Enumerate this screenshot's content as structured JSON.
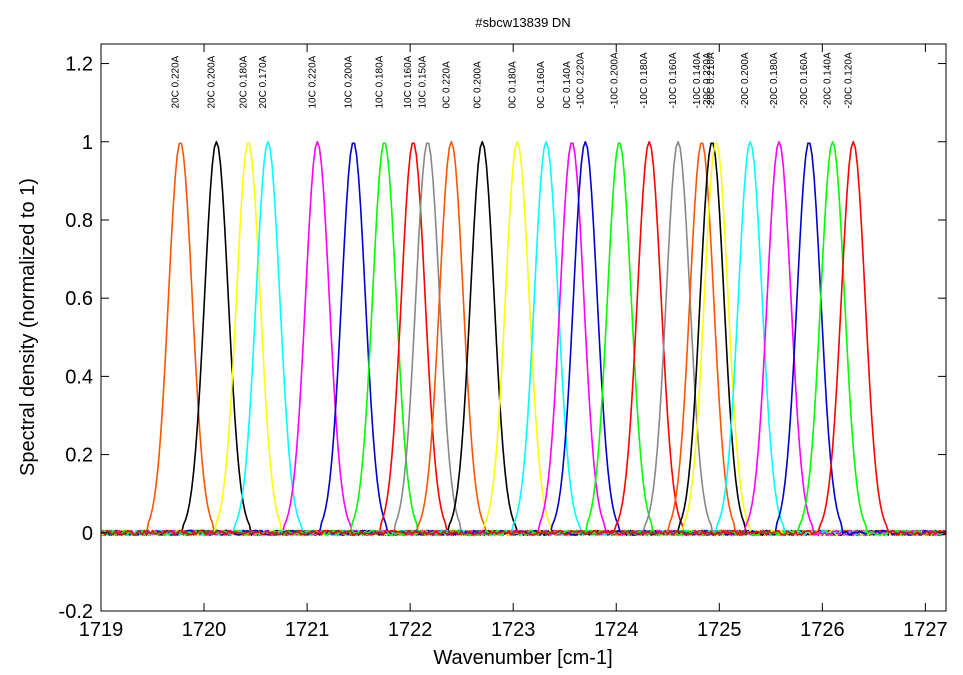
{
  "chart_data": {
    "type": "line",
    "title": "#sbcw13839 DN",
    "xlabel": "Wavenumber [cm-1]",
    "ylabel": "Spectral density (normalized to 1)",
    "xlim": [
      1719,
      1727.2
    ],
    "ylim": [
      -0.2,
      1.25
    ],
    "xticks": [
      1719,
      1720,
      1721,
      1722,
      1723,
      1724,
      1725,
      1726,
      1727
    ],
    "xtick_labels": [
      "1719",
      "1720",
      "1721",
      "1722",
      "1723",
      "1724",
      "1725",
      "1726",
      "1727"
    ],
    "yticks": [
      -0.2,
      0,
      0.2,
      0.4,
      0.6,
      0.8,
      1,
      1.2
    ],
    "ytick_labels": [
      "-0.2",
      "0",
      "0.2",
      "0.4",
      "0.6",
      "0.8",
      "1",
      "1.2"
    ],
    "grid": false,
    "peak_width": 0.27,
    "series": [
      {
        "name": "20C 0.220A",
        "peak": 1719.77,
        "color": "#ff5500"
      },
      {
        "name": "20C 0.200A",
        "peak": 1720.12,
        "color": "#000000"
      },
      {
        "name": "20C 0.180A",
        "peak": 1720.43,
        "color": "#ffff00"
      },
      {
        "name": "20C 0.170A",
        "peak": 1720.62,
        "color": "#00ffff"
      },
      {
        "name": "10C 0.220A",
        "peak": 1721.1,
        "color": "#ff00ff"
      },
      {
        "name": "10C 0.200A",
        "peak": 1721.45,
        "color": "#0000cc"
      },
      {
        "name": "10C 0.180A",
        "peak": 1721.75,
        "color": "#00ff00"
      },
      {
        "name": "10C 0.160A",
        "peak": 1722.03,
        "color": "#ff0000"
      },
      {
        "name": "10C 0.150A",
        "peak": 1722.17,
        "color": "#888888"
      },
      {
        "name": "0C 0.220A",
        "peak": 1722.4,
        "color": "#ff5500"
      },
      {
        "name": "0C 0.200A",
        "peak": 1722.7,
        "color": "#000000"
      },
      {
        "name": "0C 0.180A",
        "peak": 1723.04,
        "color": "#ffff00"
      },
      {
        "name": "0C 0.160A",
        "peak": 1723.32,
        "color": "#00ffff"
      },
      {
        "name": "0C 0.140A",
        "peak": 1723.57,
        "color": "#ff00ff"
      },
      {
        "name": "-10C 0.220A",
        "peak": 1723.7,
        "color": "#0000cc"
      },
      {
        "name": "-10C 0.200A",
        "peak": 1724.03,
        "color": "#00ff00"
      },
      {
        "name": "-10C 0.180A",
        "peak": 1724.32,
        "color": "#ff0000"
      },
      {
        "name": "-10C 0.160A",
        "peak": 1724.6,
        "color": "#888888"
      },
      {
        "name": "-10C 0.140A",
        "peak": 1724.83,
        "color": "#ff5500"
      },
      {
        "name": "-20C 0.220A",
        "peak": 1724.93,
        "color": "#000000"
      },
      {
        "name": "-20C 0.210A",
        "peak": 1724.97,
        "color": "#ffff00"
      },
      {
        "name": "-20C 0.200A",
        "peak": 1725.3,
        "color": "#00ffff"
      },
      {
        "name": "-20C 0.180A",
        "peak": 1725.58,
        "color": "#ff00ff"
      },
      {
        "name": "-20C 0.160A",
        "peak": 1725.87,
        "color": "#0000cc"
      },
      {
        "name": "-20C 0.140A",
        "peak": 1726.1,
        "color": "#00ff00"
      },
      {
        "name": "-20C 0.120A",
        "peak": 1726.3,
        "color": "#ff0000"
      }
    ]
  }
}
